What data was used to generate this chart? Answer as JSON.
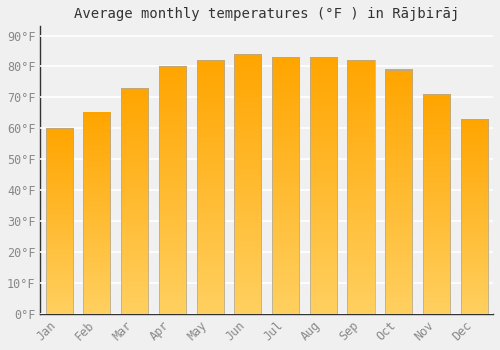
{
  "title": "Average monthly temperatures (°F ) in Rājbirāj",
  "months": [
    "Jan",
    "Feb",
    "Mar",
    "Apr",
    "May",
    "Jun",
    "Jul",
    "Aug",
    "Sep",
    "Oct",
    "Nov",
    "Dec"
  ],
  "values": [
    60,
    65,
    73,
    80,
    82,
    84,
    83,
    83,
    82,
    79,
    71,
    63
  ],
  "bar_color_top": "#FFA500",
  "bar_color_bottom": "#FFD060",
  "bar_edge_color": "#AAAAAA",
  "background_color": "#f0f0f0",
  "grid_color": "#ffffff",
  "ytick_labels": [
    "0°F",
    "10°F",
    "20°F",
    "30°F",
    "40°F",
    "50°F",
    "60°F",
    "70°F",
    "80°F",
    "90°F"
  ],
  "ytick_values": [
    0,
    10,
    20,
    30,
    40,
    50,
    60,
    70,
    80,
    90
  ],
  "ylim": [
    0,
    93
  ],
  "title_fontsize": 10,
  "tick_fontsize": 8.5,
  "tick_color": "#888888",
  "axis_color": "#333333"
}
